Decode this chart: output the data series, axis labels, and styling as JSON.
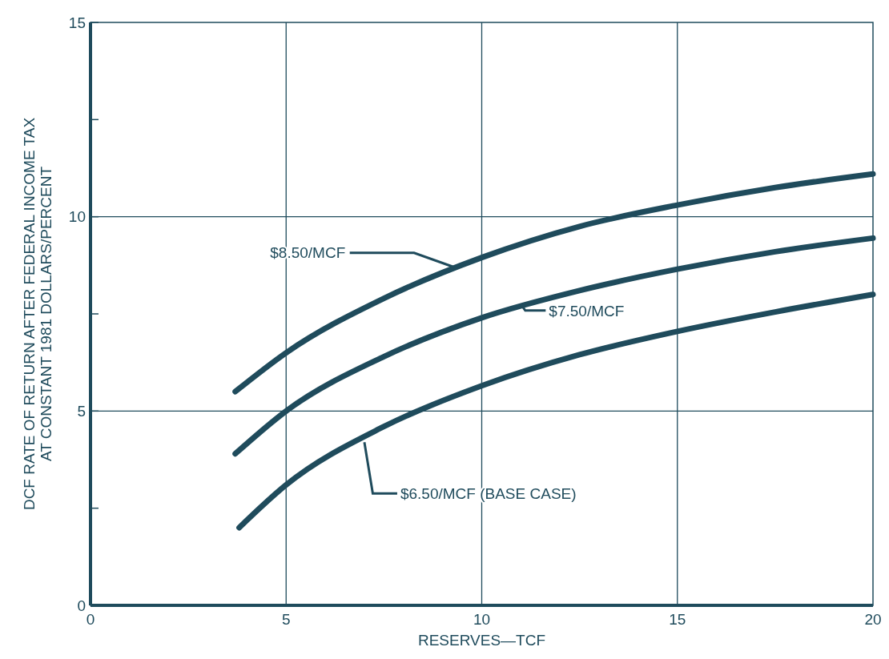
{
  "chart_data": {
    "type": "line",
    "xlabel": "RESERVES—TCF",
    "ylabel": "DCF RATE OF RETURN AFTER FEDERAL INCOME TAX\nAT CONSTANT 1981 DOLLARS/PERCENT",
    "xlim": [
      0,
      20
    ],
    "xticks": [
      0,
      5,
      10,
      15,
      20
    ],
    "ylim": [
      0,
      15
    ],
    "yticks": [
      0,
      {
        "value": 2.5,
        "label": null
      },
      5,
      {
        "value": 7.5,
        "label": null
      },
      10,
      {
        "value": 12.5,
        "label": null
      },
      15
    ],
    "grid": true,
    "line_style": "solid",
    "series": [
      {
        "color": "#1f4b5c",
        "x": [
          3.7,
          5,
          7.5,
          10,
          12.5,
          15,
          17.5,
          20
        ],
        "values": [
          5.5,
          6.5,
          7.9,
          8.95,
          9.75,
          10.3,
          10.75,
          11.1
        ]
      },
      {
        "color": "#1f4b5c",
        "x": [
          3.7,
          5,
          7.5,
          10,
          12.5,
          15,
          17.5,
          20
        ],
        "values": [
          3.9,
          5.0,
          6.4,
          7.4,
          8.1,
          8.65,
          9.1,
          9.45
        ]
      },
      {
        "color": "#1f4b5c",
        "x": [
          3.8,
          5,
          7.5,
          10,
          12.5,
          15,
          17.5,
          20
        ],
        "values": [
          2.0,
          3.1,
          4.6,
          5.65,
          6.45,
          7.05,
          7.55,
          8.0
        ]
      }
    ],
    "annotations": [
      {
        "text": "$8.50/MCF",
        "x": 9.3,
        "y": 8.7
      },
      {
        "text": "$7.50/MCF",
        "x": 11,
        "y": 7.75
      },
      {
        "text": "$6.50/MCF (BASE CASE)",
        "x": 7,
        "y": 4.2
      }
    ]
  }
}
